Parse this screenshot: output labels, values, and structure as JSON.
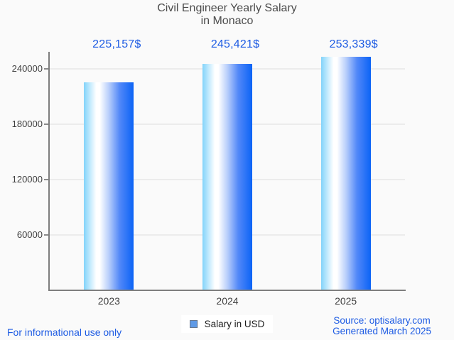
{
  "title": {
    "line1": "Civil Engineer Yearly Salary",
    "line2": "in Monaco"
  },
  "chart_data": {
    "type": "bar",
    "title": "Civil Engineer Yearly Salary in Monaco",
    "categories": [
      "2023",
      "2024",
      "2025"
    ],
    "values": [
      225157,
      245421,
      253339
    ],
    "value_labels": [
      "225,157$",
      "245,421$",
      "253,339$"
    ],
    "series_name": "Salary in USD",
    "xlabel": "",
    "ylabel": "",
    "ylim": [
      0,
      258500
    ],
    "yticks": [
      60000,
      120000,
      180000,
      240000
    ],
    "ytick_labels": [
      "60000",
      "120000",
      "180000",
      "240000"
    ],
    "grid": true,
    "legend_position": "bottom"
  },
  "legend": {
    "label": "Salary in USD",
    "swatch_color": "#5f9ae6"
  },
  "footer": {
    "disclaimer": "For informational use only",
    "source_line1": "Source: optisalary.com",
    "source_line2": "Generated March 2025"
  },
  "colors": {
    "accent_blue": "#1d5be3",
    "bar_gradient_left": "#82d3fa",
    "bar_gradient_mid": "#ffffff",
    "bar_gradient_right": "#0b63f6",
    "legend_swatch": "#5f9ae6",
    "grid_line": "#ececec",
    "axis_line": "#7e7e7e",
    "title_text": "#4c4c4c",
    "tick_text": "#3f3f3f",
    "background": "#fafafa"
  }
}
